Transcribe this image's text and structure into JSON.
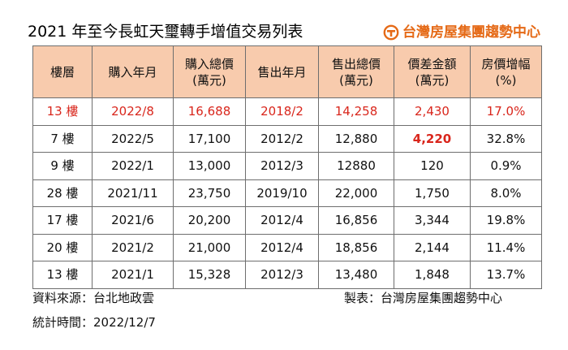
{
  "title": "2021 年至今長虹天璽轉手增值交易列表",
  "brand": {
    "name": "台灣房屋集團趨勢中心",
    "color": "#e56a17"
  },
  "table": {
    "headers": [
      {
        "line1": "樓層",
        "line2": ""
      },
      {
        "line1": "購入年月",
        "line2": ""
      },
      {
        "line1": "購入總價",
        "line2": "(萬元)"
      },
      {
        "line1": "售出年月",
        "line2": ""
      },
      {
        "line1": "售出總價",
        "line2": "(萬元)"
      },
      {
        "line1": "價差金額",
        "line2": "(萬元)"
      },
      {
        "line1": "房價增幅",
        "line2": "(%)"
      }
    ],
    "rows": [
      [
        "13 樓",
        "2022/8",
        "16,688",
        "2018/2",
        "14,258",
        "2,430",
        "17.0%"
      ],
      [
        "7 樓",
        "2022/5",
        "17,100",
        "2012/2",
        "12,880",
        "4,220",
        "32.8%"
      ],
      [
        "9 樓",
        "2022/1",
        "13,000",
        "2012/3",
        "12880",
        "120",
        "0.9%"
      ],
      [
        "28 樓",
        "2021/11",
        "23,750",
        "2019/10",
        "22,000",
        "1,750",
        "8.0%"
      ],
      [
        "17 樓",
        "2021/6",
        "20,200",
        "2012/4",
        "16,856",
        "3,344",
        "19.8%"
      ],
      [
        "20 樓",
        "2021/2",
        "21,000",
        "2012/4",
        "18,856",
        "2,144",
        "11.4%"
      ],
      [
        "13 樓",
        "2021/1",
        "15,328",
        "2012/3",
        "13,480",
        "1,848",
        "13.7%"
      ]
    ],
    "header_bg": "#f8cbad",
    "highlight_color": "#d9261c"
  },
  "footer": {
    "source": "資料來源：台北地政雲",
    "maker": "製表：台灣房屋集團趨勢中心",
    "date": "統計時間：2022/12/7"
  }
}
